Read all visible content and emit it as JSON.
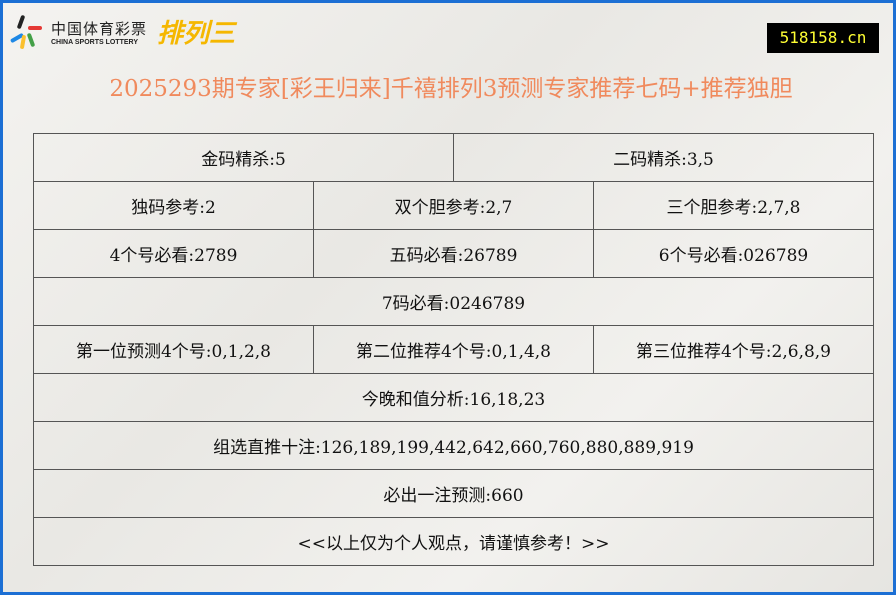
{
  "logo": {
    "cn": "中国体育彩票",
    "en": "CHINA SPORTS LOTTERY",
    "product": "排列三"
  },
  "site": "518158.cn",
  "title": "2025293期专家[彩王归来]千禧排列3预测专家推荐七码+推荐独胆",
  "rows": [
    [
      "金码精杀:5",
      "二码精杀:3,5"
    ],
    [
      "独码参考:2",
      "双个胆参考:2,7",
      "三个胆参考:2,7,8"
    ],
    [
      "4个号必看:2789",
      "五码必看:26789",
      "6个号必看:026789"
    ],
    [
      "7码必看:0246789"
    ],
    [
      "第一位预测4个号:0,1,2,8",
      "第二位推荐4个号:0,1,4,8",
      "第三位推荐4个号:2,6,8,9"
    ],
    [
      "今晚和值分析:16,18,23"
    ],
    [
      "组选直推十注:126,189,199,442,642,660,760,880,889,919"
    ],
    [
      "必出一注预测:660"
    ],
    [
      "<<以上仅为个人观点，请谨慎参考！>>"
    ]
  ],
  "colors": {
    "border": "#1c6fd4",
    "title": "#f08a5d",
    "site_text": "#ffff33"
  }
}
